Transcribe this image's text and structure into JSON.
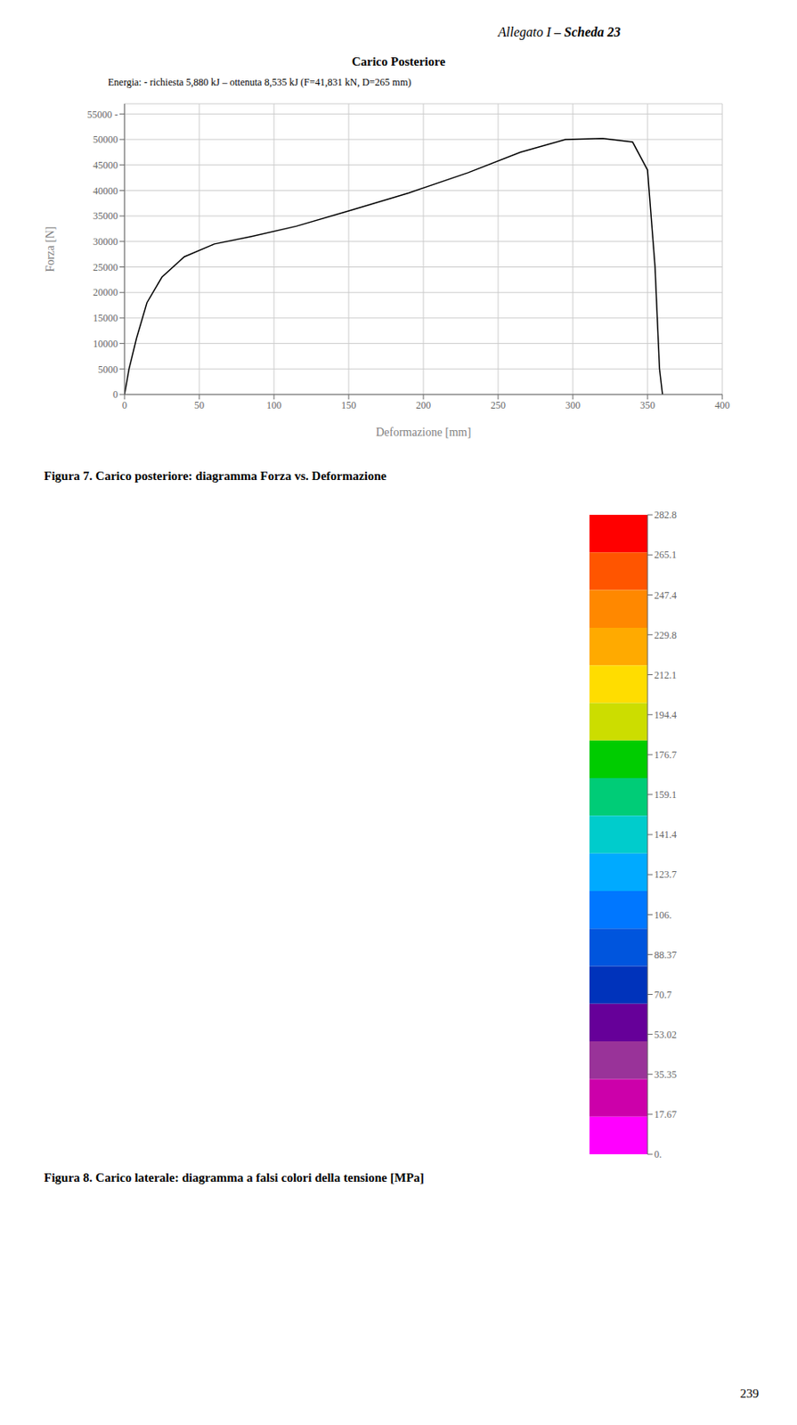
{
  "chart_data": [
    {
      "type": "line",
      "title": "Carico Posteriore",
      "subtitle": "Energia: - richiesta 5,880 kJ – ottenuta 8,535 kJ (F=41,831 kN, D=265 mm)",
      "x_label": "Deformazione [mm]",
      "y_label": "Forza [N]",
      "x": [
        0,
        3,
        8,
        15,
        25,
        40,
        60,
        85,
        115,
        150,
        190,
        230,
        265,
        295,
        320,
        340,
        350,
        355,
        358,
        360
      ],
      "values": [
        0,
        5000,
        11000,
        18000,
        23000,
        27000,
        29500,
        31000,
        33000,
        36000,
        39500,
        43500,
        47500,
        50000,
        50200,
        49500,
        44000,
        25000,
        5000,
        0
      ],
      "color": "#000000",
      "xlim": [
        0,
        400
      ],
      "ylim": [
        0,
        57000
      ],
      "xticks": [
        0,
        50,
        100,
        150,
        200,
        250,
        300,
        350,
        400
      ],
      "yticks": [
        0,
        5000,
        10000,
        15000,
        20000,
        25000,
        30000,
        35000,
        40000,
        45000,
        50000,
        {
          "value": 55000,
          "label": "55000 -"
        }
      ],
      "grid": true,
      "annotations": [
        "Allegato I –",
        "Scheda 23",
        "Figura 7. Carico posteriore: diagramma Forza vs. Deformazione",
        "239"
      ]
    },
    {
      "type": "colorbar",
      "title": "Figura 8. Carico laterale: diagramma a falsi colori della tensione [MPa]",
      "colorbar": {
        "range": [
          0,
          282.8
        ],
        "ticks": [
          282.8,
          265.1,
          247.4,
          229.8,
          212.1,
          194.4,
          176.7,
          159.1,
          141.4,
          123.7,
          {
            "value": 106.0,
            "label": "106."
          },
          88.37,
          70.7,
          53.02,
          35.35,
          17.67,
          {
            "value": 0.0,
            "label": "0."
          }
        ],
        "colors": [
          "#ff0000",
          "#ff5500",
          "#ff8800",
          "#ffaa00",
          "#ffdd00",
          "#ccdd00",
          "#00cc00",
          "#00cc77",
          "#00cccc",
          "#00aaff",
          "#0077ff",
          "#0055dd",
          "#0033bb",
          "#660099",
          "#993399",
          "#cc00aa",
          "#ff00ff"
        ]
      }
    }
  ]
}
